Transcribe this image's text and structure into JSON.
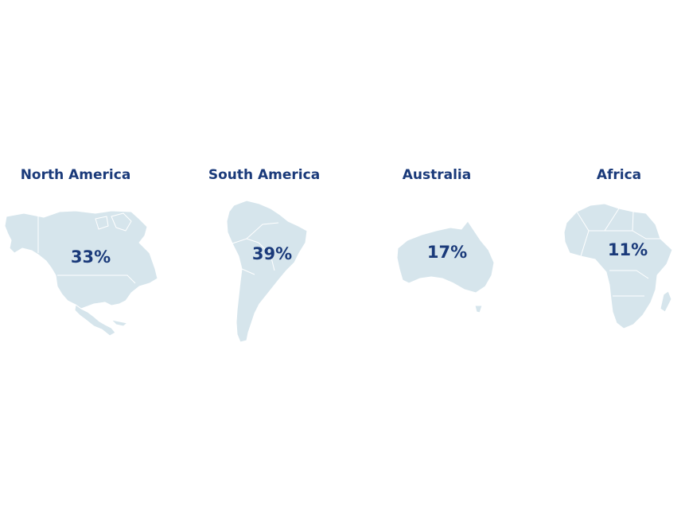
{
  "map": {
    "land_color": "#d6e5ec",
    "text_color": "#1a3a7a",
    "regions": [
      {
        "name": "North America",
        "value": "33%"
      },
      {
        "name": "South America",
        "value": "39%"
      },
      {
        "name": "Australia",
        "value": "17%"
      },
      {
        "name": "Africa",
        "value": "11%"
      }
    ]
  }
}
